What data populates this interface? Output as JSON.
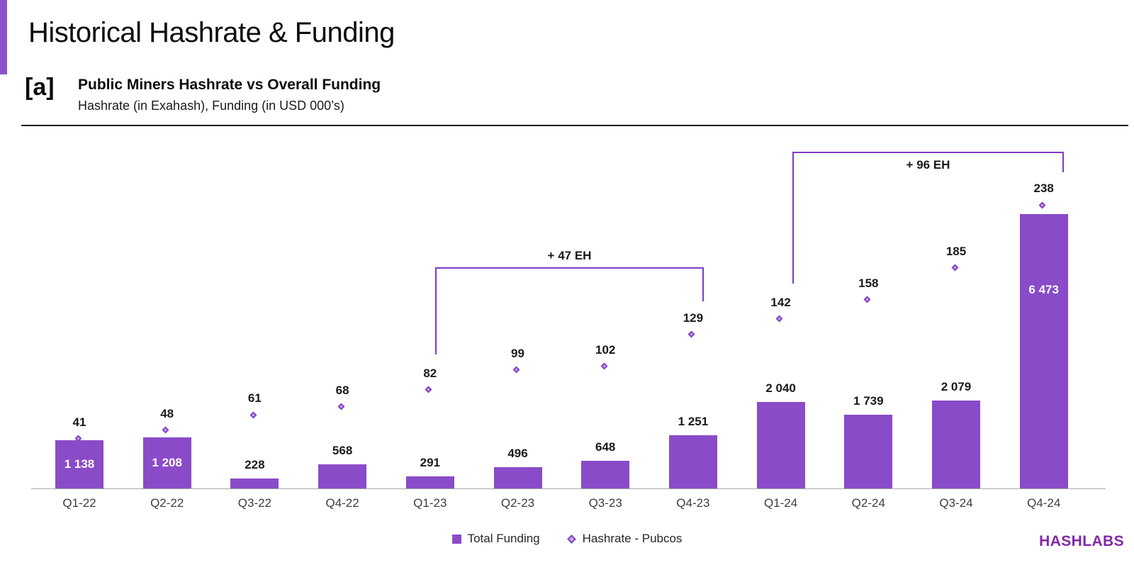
{
  "page": {
    "title": "Historical Hashrate & Funding",
    "figure_marker": "[a]",
    "figure_title": "Public Miners Hashrate vs Overall Funding",
    "figure_subtitle": "Hashrate (in Exahash), Funding (in USD 000’s)",
    "logo_text": "HASHLABS"
  },
  "colors": {
    "accent_bar": "#8a52c8",
    "bar_fill": "#8a4bc8",
    "diamond_fill": "#cda9e8",
    "diamond_border": "#8343c4",
    "annotation_line": "#7d3bc8",
    "logo": "#8227a8"
  },
  "chart_data": {
    "type": "bar",
    "title": "Public Miners Hashrate vs Overall Funding",
    "xlabel": "",
    "ylabel_left": "Funding (in USD 000’s)",
    "ylabel_right": "Hashrate (in Exahash)",
    "grid": false,
    "legend_position": "bottom-center",
    "categories": [
      "Q1-22",
      "Q2-22",
      "Q3-22",
      "Q4-22",
      "Q1-23",
      "Q2-23",
      "Q3-23",
      "Q4-23",
      "Q1-24",
      "Q2-24",
      "Q3-24",
      "Q4-24"
    ],
    "series": [
      {
        "name": "Total Funding",
        "type": "bar",
        "values": [
          1138,
          1208,
          228,
          568,
          291,
          496,
          648,
          1251,
          2040,
          1739,
          2079,
          6473
        ],
        "labels": [
          "1 138",
          "1 208",
          "228",
          "568",
          "291",
          "496",
          "648",
          "1 251",
          "2 040",
          "1 739",
          "2 079",
          "6 473"
        ],
        "label_placement": [
          "inside-middle",
          "inside-middle",
          "outside",
          "outside",
          "outside",
          "outside",
          "outside",
          "outside",
          "outside",
          "outside",
          "outside",
          "inside-top"
        ]
      },
      {
        "name": "Hashrate - Pubcos",
        "type": "scatter",
        "marker": "diamond",
        "values": [
          41,
          48,
          61,
          68,
          82,
          99,
          102,
          129,
          142,
          158,
          185,
          238
        ],
        "labels": [
          "41",
          "48",
          "61",
          "68",
          "82",
          "99",
          "102",
          "129",
          "142",
          "158",
          "185",
          "238"
        ]
      }
    ],
    "annotations": [
      {
        "label": "+ 47 EH",
        "from": "Q1-23",
        "to": "Q4-23"
      },
      {
        "label": "+ 96 EH",
        "from": "Q1-24",
        "to": "Q4-24"
      }
    ],
    "legend": [
      {
        "label": "Total Funding",
        "marker": "square"
      },
      {
        "label": "Hashrate - Pubcos",
        "marker": "diamond"
      }
    ]
  }
}
